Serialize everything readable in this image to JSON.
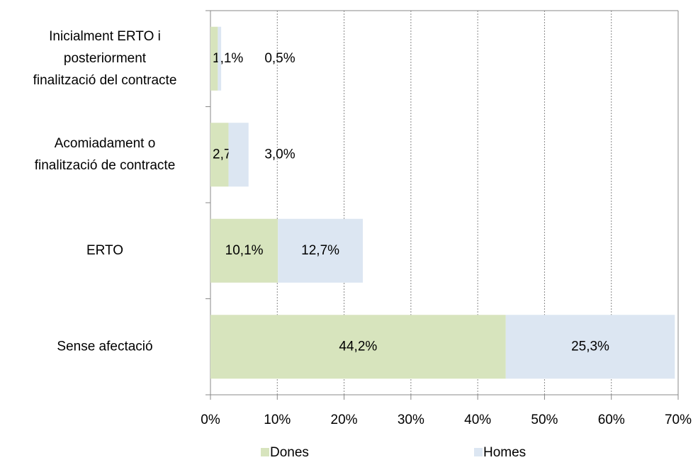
{
  "chart_data": {
    "type": "bar",
    "orientation": "horizontal",
    "stacked": true,
    "categories": [
      [
        "Inicialment ERTO i",
        "posteriorment",
        "finalització del contracte"
      ],
      [
        "Acomiadament o",
        "finalització de contracte"
      ],
      [
        "ERTO"
      ],
      [
        "Sense afectació"
      ]
    ],
    "series": [
      {
        "name": "Dones",
        "color": "#d7e4bd",
        "values": [
          1.1,
          2.7,
          10.1,
          44.2
        ],
        "value_labels": [
          "1,1%",
          "2,7%",
          "10,1%",
          "44,2%"
        ]
      },
      {
        "name": "Homes",
        "color": "#dce6f2",
        "values": [
          0.5,
          3.0,
          12.7,
          25.3
        ],
        "value_labels": [
          "0,5%",
          "3,0%",
          "12,7%",
          "25,3%"
        ]
      }
    ],
    "xlim": [
      0,
      70
    ],
    "xticks": [
      {
        "value": 0,
        "label": "0%"
      },
      {
        "value": 10,
        "label": "10%"
      },
      {
        "value": 20,
        "label": "20%"
      },
      {
        "value": 30,
        "label": "30%"
      },
      {
        "value": 40,
        "label": "40%"
      },
      {
        "value": 50,
        "label": "50%"
      },
      {
        "value": 60,
        "label": "60%"
      },
      {
        "value": 70,
        "label": "70%"
      }
    ],
    "grid": true,
    "legend": "bottom"
  }
}
